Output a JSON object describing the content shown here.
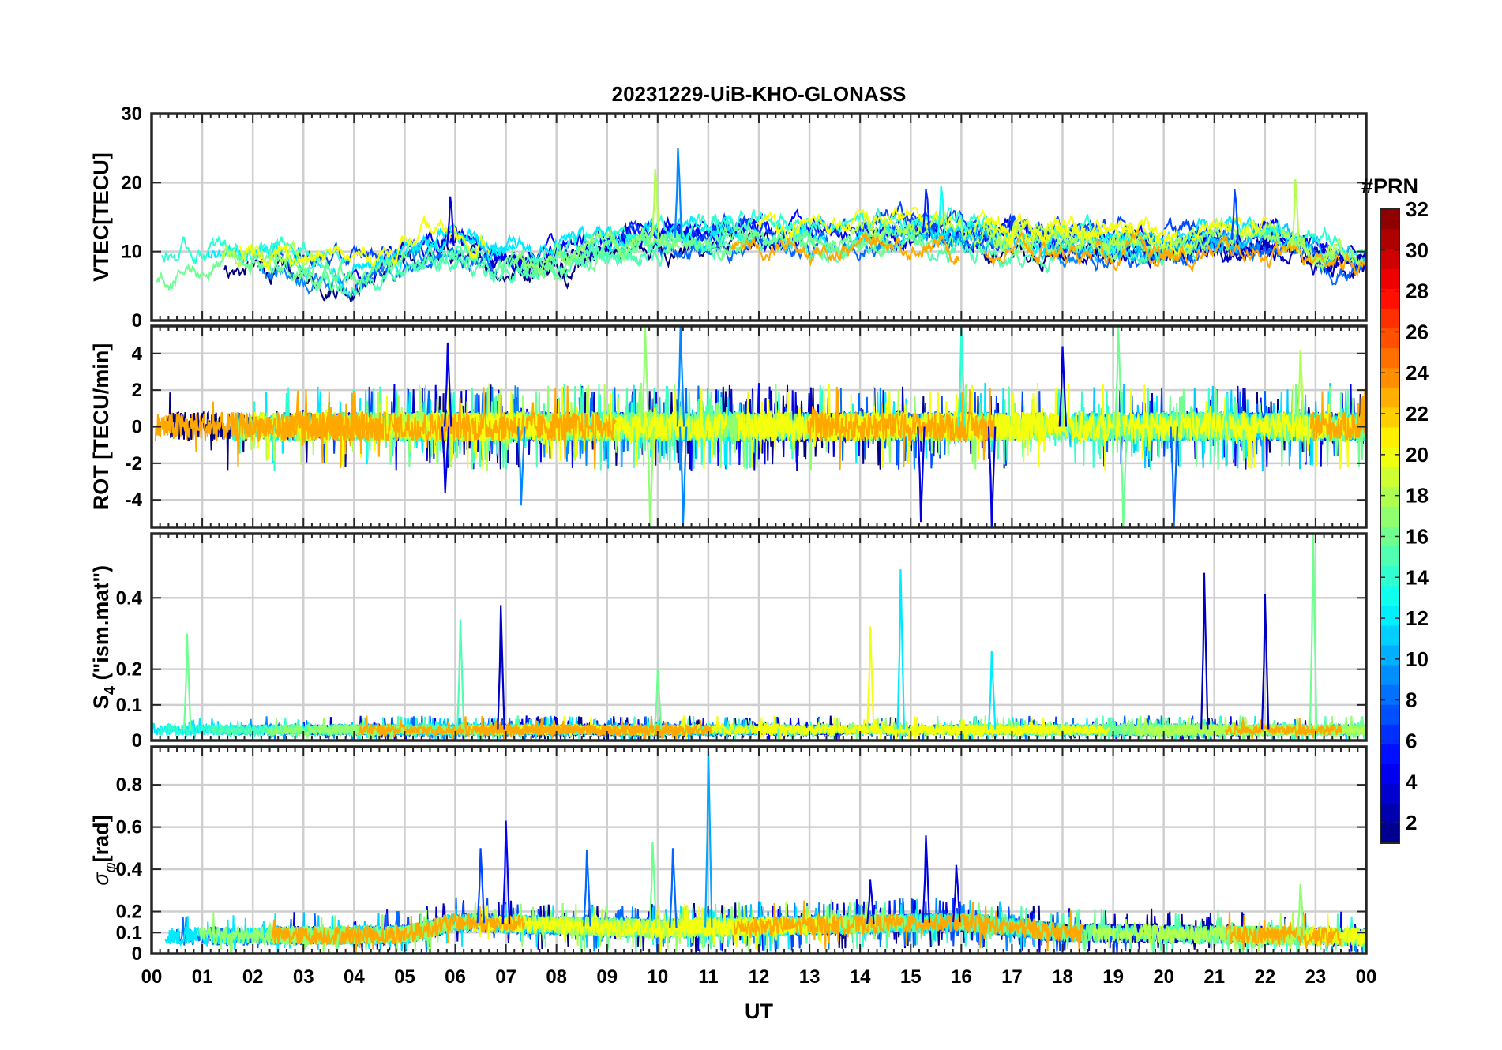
{
  "chart_data": {
    "type": "line",
    "title": "20231229-UiB-KHO-GLONASS",
    "xlabel": "UT",
    "x_range": [
      0,
      24
    ],
    "x_tick_labels": [
      "00",
      "01",
      "02",
      "03",
      "04",
      "05",
      "06",
      "07",
      "08",
      "09",
      "10",
      "11",
      "12",
      "13",
      "14",
      "15",
      "16",
      "17",
      "18",
      "19",
      "20",
      "21",
      "22",
      "23",
      "00"
    ],
    "grid": true,
    "panels": [
      {
        "id": "vtec",
        "ylabel": "VTEC[TECU]",
        "ylim": [
          0,
          30
        ],
        "yticks": [
          0,
          10,
          20,
          30
        ],
        "base": [
          [
            0,
            7
          ],
          [
            1,
            8.5
          ],
          [
            2,
            9
          ],
          [
            3,
            7.5
          ],
          [
            4,
            7
          ],
          [
            5,
            9.5
          ],
          [
            6,
            11
          ],
          [
            7,
            9
          ],
          [
            8,
            9.5
          ],
          [
            9,
            11
          ],
          [
            10,
            12
          ],
          [
            11,
            12
          ],
          [
            12,
            12.5
          ],
          [
            13,
            12
          ],
          [
            14,
            12.5
          ],
          [
            15,
            13
          ],
          [
            16,
            12
          ],
          [
            17,
            11.5
          ],
          [
            18,
            11.5
          ],
          [
            19,
            11
          ],
          [
            20,
            11
          ],
          [
            21,
            11.5
          ],
          [
            22,
            12
          ],
          [
            23,
            10
          ],
          [
            24,
            9
          ]
        ],
        "noise": 1.8,
        "spikes": [
          {
            "x": 10.4,
            "y": 25,
            "prn": 9
          },
          {
            "x": 9.95,
            "y": 22,
            "prn": 18
          },
          {
            "x": 5.9,
            "y": 18,
            "prn": 4
          },
          {
            "x": 15.3,
            "y": 19,
            "prn": 6
          },
          {
            "x": 22.6,
            "y": 20.5,
            "prn": 18
          },
          {
            "x": 21.4,
            "y": 19,
            "prn": 7
          },
          {
            "x": 15.6,
            "y": 19.5,
            "prn": 13
          }
        ]
      },
      {
        "id": "rot",
        "ylabel": "ROT [TECU/min]",
        "ylim": [
          -5.5,
          5.5
        ],
        "yticks": [
          -4,
          -2,
          0,
          2,
          4
        ],
        "base": [
          [
            0,
            0
          ],
          [
            24,
            0
          ]
        ],
        "noise": 0.8,
        "spikes": [
          {
            "x": 9.75,
            "y": 5.5,
            "prn": 17
          },
          {
            "x": 9.85,
            "y": -5.5,
            "prn": 17
          },
          {
            "x": 10.45,
            "y": 5.5,
            "prn": 9
          },
          {
            "x": 10.5,
            "y": -5.5,
            "prn": 9
          },
          {
            "x": 5.85,
            "y": 4.6,
            "prn": 4
          },
          {
            "x": 5.8,
            "y": -3.6,
            "prn": 4
          },
          {
            "x": 16.0,
            "y": 5.5,
            "prn": 14
          },
          {
            "x": 16.6,
            "y": -5.5,
            "prn": 4
          },
          {
            "x": 15.2,
            "y": -5.2,
            "prn": 4
          },
          {
            "x": 19.1,
            "y": 5.5,
            "prn": 16
          },
          {
            "x": 19.2,
            "y": -5.5,
            "prn": 16
          },
          {
            "x": 20.2,
            "y": -5.5,
            "prn": 8
          },
          {
            "x": 22.7,
            "y": 4.2,
            "prn": 18
          },
          {
            "x": 18.0,
            "y": 4.4,
            "prn": 4
          },
          {
            "x": 7.3,
            "y": -4.3,
            "prn": 9
          }
        ]
      },
      {
        "id": "s4",
        "ylabel": "S4 (\"ism.mat\")",
        "ylim": [
          0,
          0.58
        ],
        "yticks": [
          0,
          0.1,
          0.2,
          0.4
        ],
        "base": [
          [
            0,
            0.03
          ],
          [
            24,
            0.03
          ]
        ],
        "noise": 0.02,
        "spikes": [
          {
            "x": 0.7,
            "y": 0.3,
            "prn": 16
          },
          {
            "x": 6.1,
            "y": 0.34,
            "prn": 15
          },
          {
            "x": 6.9,
            "y": 0.38,
            "prn": 3
          },
          {
            "x": 14.8,
            "y": 0.48,
            "prn": 12
          },
          {
            "x": 14.2,
            "y": 0.32,
            "prn": 20
          },
          {
            "x": 20.8,
            "y": 0.47,
            "prn": 3
          },
          {
            "x": 22.0,
            "y": 0.41,
            "prn": 3
          },
          {
            "x": 22.95,
            "y": 0.58,
            "prn": 16
          },
          {
            "x": 16.6,
            "y": 0.25,
            "prn": 12
          },
          {
            "x": 10.0,
            "y": 0.2,
            "prn": 16
          }
        ]
      },
      {
        "id": "sigma",
        "ylabel": "σφ[rad]",
        "ylim": [
          0,
          0.98
        ],
        "yticks": [
          0,
          0.1,
          0.2,
          0.4,
          0.6,
          0.8
        ],
        "base": [
          [
            0,
            0.08
          ],
          [
            5,
            0.09
          ],
          [
            6,
            0.15
          ],
          [
            7,
            0.14
          ],
          [
            10,
            0.12
          ],
          [
            14,
            0.14
          ],
          [
            16,
            0.15
          ],
          [
            18,
            0.1
          ],
          [
            24,
            0.08
          ]
        ],
        "noise": 0.06,
        "spikes": [
          {
            "x": 11.0,
            "y": 0.98,
            "prn": 10
          },
          {
            "x": 7.0,
            "y": 0.63,
            "prn": 5
          },
          {
            "x": 15.3,
            "y": 0.56,
            "prn": 4
          },
          {
            "x": 6.5,
            "y": 0.5,
            "prn": 7
          },
          {
            "x": 8.6,
            "y": 0.49,
            "prn": 8
          },
          {
            "x": 10.3,
            "y": 0.5,
            "prn": 8
          },
          {
            "x": 9.9,
            "y": 0.53,
            "prn": 16
          },
          {
            "x": 15.9,
            "y": 0.42,
            "prn": 4
          },
          {
            "x": 14.2,
            "y": 0.35,
            "prn": 4
          },
          {
            "x": 22.7,
            "y": 0.33,
            "prn": 17
          }
        ]
      }
    ],
    "colorbar": {
      "label": "#PRN",
      "range": [
        1,
        32
      ],
      "ticks": [
        2,
        4,
        6,
        8,
        10,
        12,
        14,
        16,
        18,
        20,
        22,
        24,
        26,
        28,
        30,
        32
      ],
      "colormap": "jet"
    },
    "series": [
      {
        "prn": 1
      },
      {
        "prn": 3
      },
      {
        "prn": 4
      },
      {
        "prn": 5
      },
      {
        "prn": 7
      },
      {
        "prn": 8
      },
      {
        "prn": 9
      },
      {
        "prn": 11
      },
      {
        "prn": 12
      },
      {
        "prn": 14
      },
      {
        "prn": 15
      },
      {
        "prn": 16
      },
      {
        "prn": 17
      },
      {
        "prn": 18
      },
      {
        "prn": 20
      },
      {
        "prn": 23
      }
    ]
  }
}
